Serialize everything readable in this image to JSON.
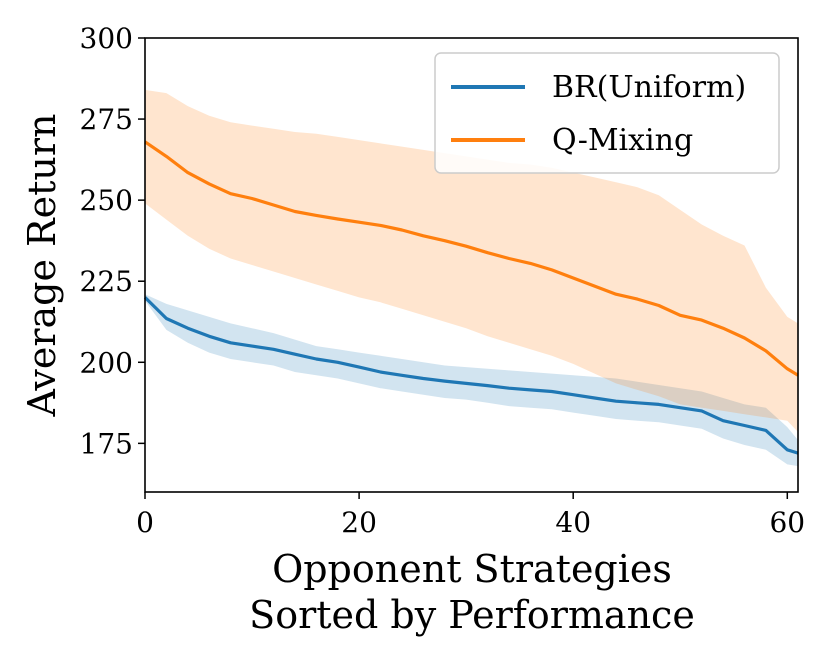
{
  "chart_data": {
    "type": "line",
    "title": "",
    "xlabel_lines": [
      "Opponent Strategies",
      "Sorted by Performance"
    ],
    "ylabel": "Average Return",
    "xlim": [
      0,
      61
    ],
    "ylim": [
      160,
      300
    ],
    "xticks": [
      0,
      20,
      40,
      60
    ],
    "yticks": [
      175,
      200,
      225,
      250,
      275,
      300
    ],
    "x": [
      0,
      2,
      4,
      6,
      8,
      10,
      12,
      14,
      16,
      18,
      20,
      22,
      24,
      26,
      28,
      30,
      32,
      34,
      36,
      38,
      40,
      42,
      44,
      46,
      48,
      50,
      52,
      54,
      56,
      58,
      60,
      61
    ],
    "legend_position": "upper right",
    "series": [
      {
        "name": "BR(Uniform)",
        "color": "#1f77b4",
        "values": [
          220,
          213.5,
          210.5,
          208,
          206,
          205,
          204,
          202.5,
          201,
          200,
          198.5,
          197,
          196,
          195,
          194.2,
          193.5,
          192.8,
          192,
          191.5,
          191,
          190,
          189,
          188,
          187.5,
          187,
          186,
          185,
          182,
          180.5,
          179,
          173,
          172
        ],
        "upper": [
          221,
          218,
          216,
          214,
          212,
          210.5,
          209,
          207,
          205,
          204,
          203,
          202,
          201,
          200,
          199,
          198.5,
          198,
          197.5,
          197,
          196.5,
          196,
          195.5,
          195,
          194,
          193,
          192,
          191,
          189,
          187,
          186,
          180,
          176
        ],
        "lower": [
          219,
          210,
          206,
          203,
          201,
          200,
          199,
          197,
          196,
          195,
          193.5,
          192,
          191,
          190,
          189,
          188.5,
          187.5,
          186.5,
          186,
          185.5,
          184.5,
          183.5,
          182.5,
          182,
          181.5,
          180.5,
          179.5,
          176.5,
          174.5,
          173,
          168.5,
          168
        ]
      },
      {
        "name": "Q-Mixing",
        "color": "#ff7f0e",
        "values": [
          268,
          263.5,
          258.5,
          255,
          252,
          250.5,
          248.5,
          246.5,
          245.3,
          244.2,
          243.2,
          242.2,
          240.8,
          239,
          237.5,
          235.8,
          233.8,
          232,
          230.5,
          228.5,
          226,
          223.5,
          221,
          219.5,
          217.5,
          214.5,
          213,
          210.5,
          207.5,
          203.5,
          198,
          196
        ],
        "upper": [
          284,
          283,
          279,
          276,
          274,
          273,
          272,
          271,
          270.5,
          269.5,
          268.5,
          267.5,
          266.5,
          265.5,
          264.5,
          263.5,
          262.5,
          261.5,
          261,
          260,
          258.5,
          257,
          255.5,
          254,
          251.5,
          247,
          242.5,
          239,
          236,
          223,
          214,
          212
        ],
        "lower": [
          249,
          244,
          239,
          235,
          232,
          230,
          228,
          226,
          224,
          222,
          220,
          218.5,
          216.5,
          214.5,
          212.5,
          210.5,
          208,
          206,
          204,
          202,
          199.5,
          196.5,
          193.5,
          191.5,
          189.5,
          187,
          186,
          185,
          184,
          183,
          182,
          178.5
        ]
      }
    ]
  }
}
